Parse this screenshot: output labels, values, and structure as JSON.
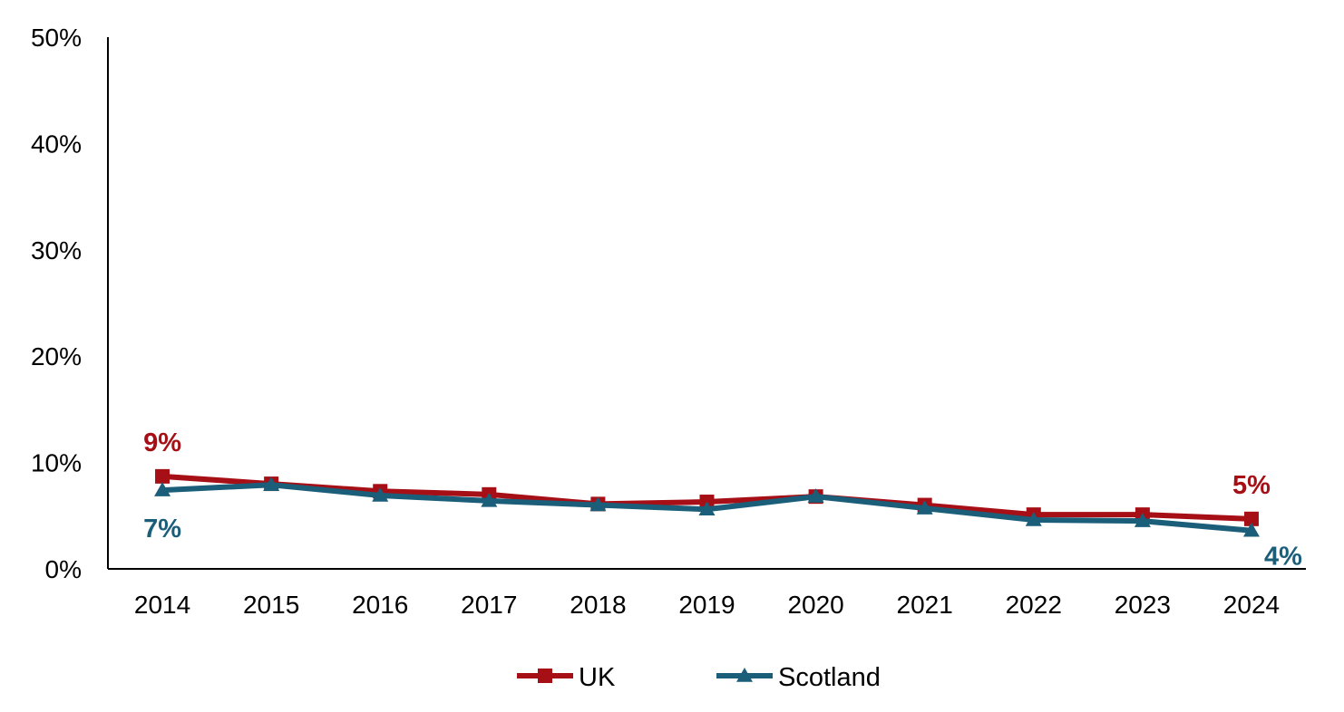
{
  "chart_data": {
    "type": "line",
    "title": "",
    "xlabel": "",
    "ylabel": "",
    "categories": [
      "2014",
      "2015",
      "2016",
      "2017",
      "2018",
      "2019",
      "2020",
      "2021",
      "2022",
      "2023",
      "2024"
    ],
    "ylim": [
      0,
      50
    ],
    "yticks": [
      0,
      10,
      20,
      30,
      40,
      50
    ],
    "ytick_labels": [
      "0%",
      "10%",
      "20%",
      "30%",
      "40%",
      "50%"
    ],
    "grid": false,
    "legend_position": "bottom",
    "series": [
      {
        "name": "UK",
        "color": "#A50F15",
        "marker": "square",
        "values": [
          8.7,
          8.0,
          7.3,
          7.0,
          6.1,
          6.3,
          6.8,
          6.0,
          5.1,
          5.1,
          4.7
        ],
        "labels": [
          {
            "index": 0,
            "text": "9%",
            "position": "above"
          },
          {
            "index": 10,
            "text": "5%",
            "position": "above"
          }
        ]
      },
      {
        "name": "Scotland",
        "color": "#1B5E7A",
        "marker": "triangle",
        "values": [
          7.4,
          7.9,
          6.9,
          6.4,
          6.0,
          5.6,
          6.8,
          5.7,
          4.6,
          4.5,
          3.6
        ],
        "labels": [
          {
            "index": 0,
            "text": "7%",
            "position": "below"
          },
          {
            "index": 10,
            "text": "4%",
            "position": "below-right"
          }
        ]
      }
    ]
  }
}
